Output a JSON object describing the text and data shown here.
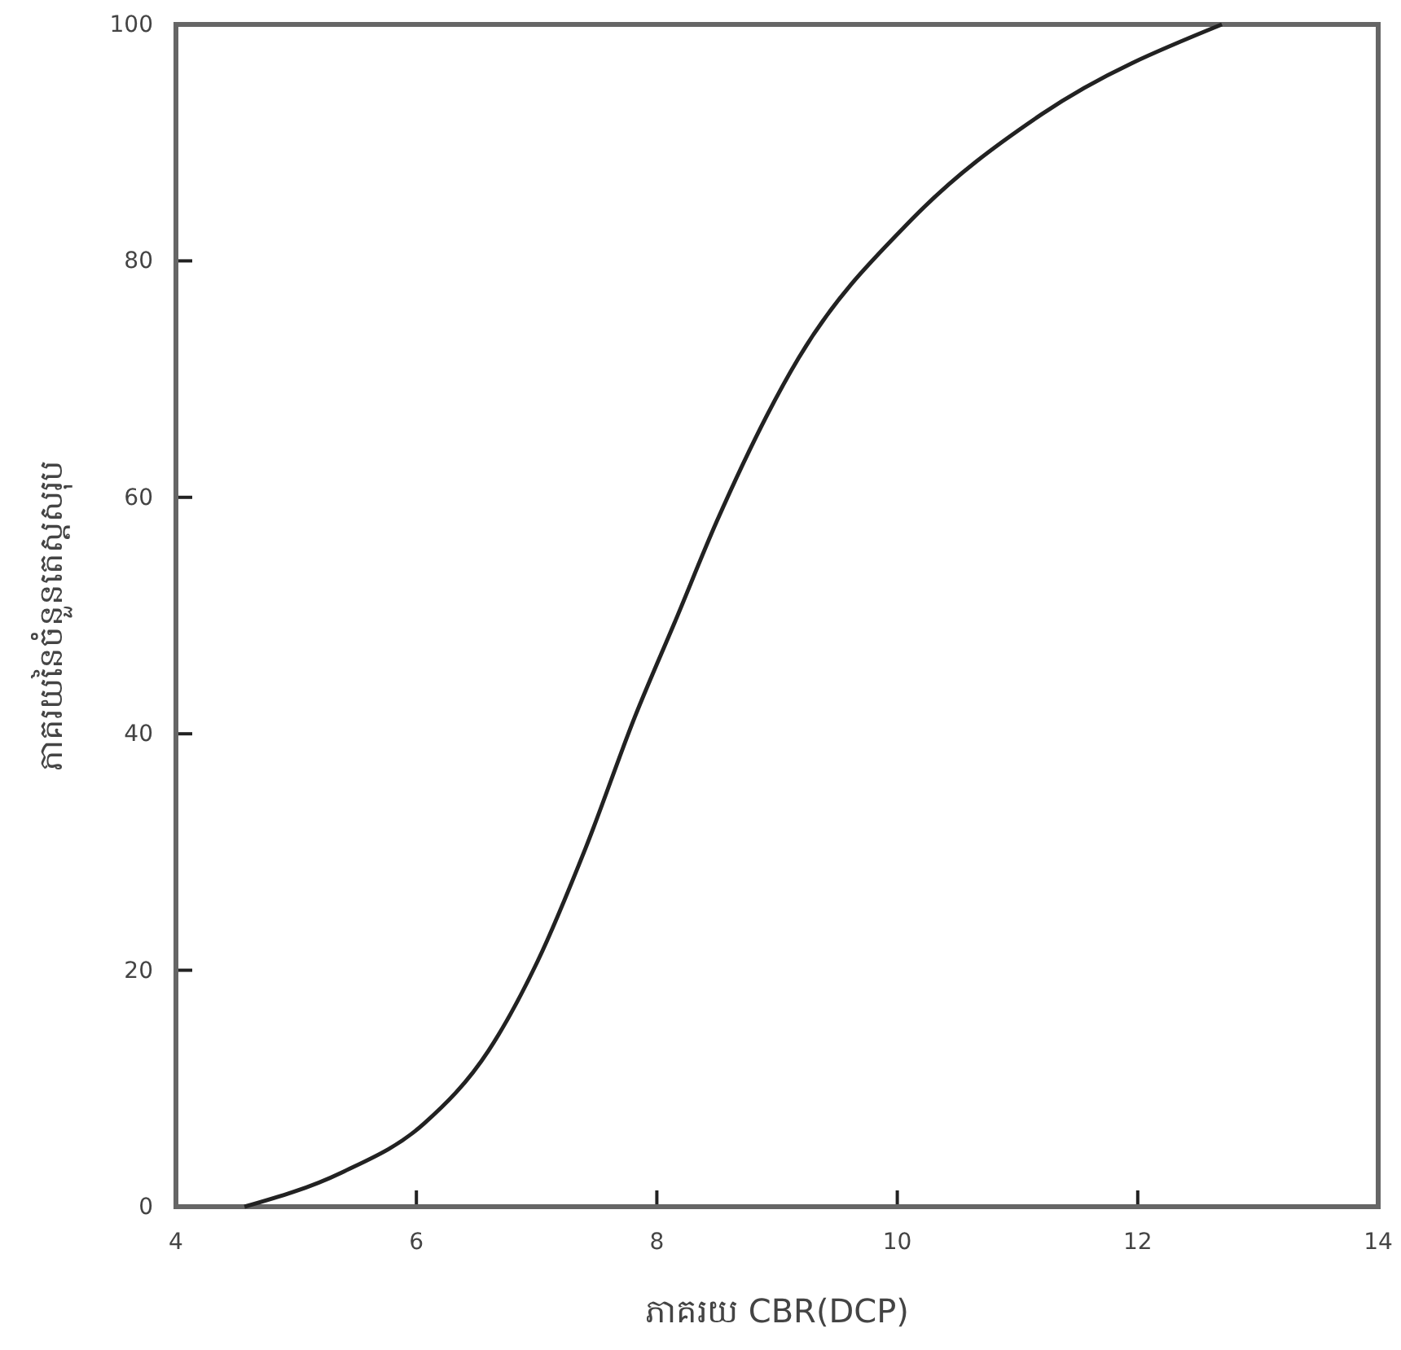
{
  "chart_data": {
    "type": "line",
    "xlabel": "ភាគរយ CBR(DCP)",
    "ylabel": "ភាគរយនៃចំនួនតេស្តសរុប",
    "series": [
      {
        "color": "#222222",
        "x": [
          4.57,
          5.38,
          6.06,
          6.6,
          7.01,
          7.41,
          7.82,
          8.16,
          8.5,
          9.18,
          10.12,
          11.2,
          12.7
        ],
        "values": [
          0,
          2.9,
          7,
          13.2,
          20.8,
          30.4,
          41.5,
          49.7,
          58,
          71.8,
          83.5,
          92.4,
          100
        ]
      }
    ],
    "xlim": [
      4,
      14
    ],
    "ylim": [
      0,
      100
    ],
    "xticks": [
      4,
      6,
      8,
      10,
      12,
      14
    ],
    "yticks": [
      0,
      20,
      40,
      60,
      80,
      100
    ],
    "grid": false,
    "marker": "none",
    "line_style": "solid"
  }
}
